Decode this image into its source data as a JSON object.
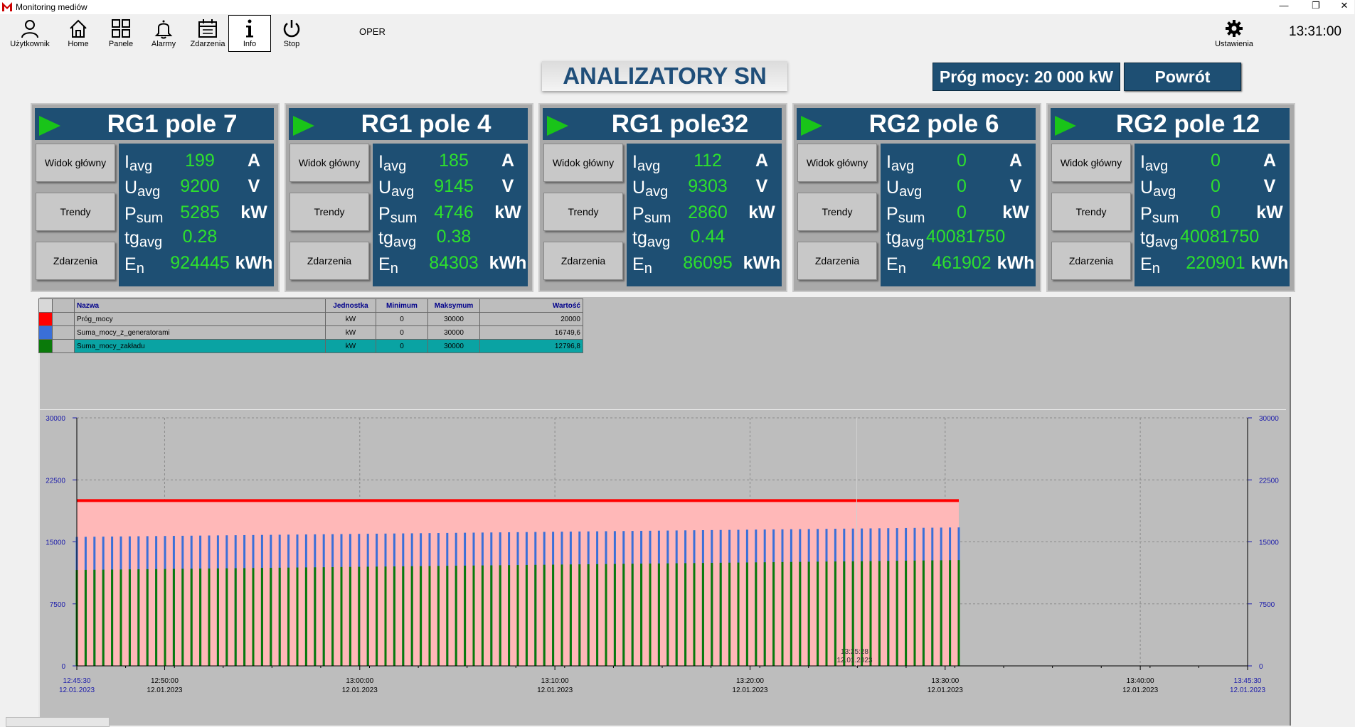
{
  "window": {
    "title": "Monitoring mediów",
    "minimize": "—",
    "restore": "❐",
    "close": "✕"
  },
  "toolbar": {
    "buttons": [
      {
        "label": "Użytkownik",
        "icon": "user-icon"
      },
      {
        "label": "Home",
        "icon": "home-icon"
      },
      {
        "label": "Panele",
        "icon": "panels-icon"
      },
      {
        "label": "Alarmy",
        "icon": "bell-icon"
      },
      {
        "label": "Zdarzenia",
        "icon": "calendar-icon"
      },
      {
        "label": "Info",
        "icon": "info-icon"
      },
      {
        "label": "Stop",
        "icon": "power-icon"
      }
    ],
    "mode": "OPER",
    "settings_label": "Ustawienia",
    "clock": "13:31:00"
  },
  "header": {
    "title": "ANALIZATORY SN",
    "threshold": "Próg mocy:  20 000 kW",
    "back": "Powrót"
  },
  "panels": [
    {
      "title": "RG1 pole 7",
      "I": "199",
      "U": "9200",
      "P": "5285",
      "tg": "0.28",
      "E": "924445"
    },
    {
      "title": "RG1 pole 4",
      "I": "185",
      "U": "9145",
      "P": "4746",
      "tg": "0.38",
      "E": "84303"
    },
    {
      "title": "RG1 pole32",
      "I": "112",
      "U": "9303",
      "P": "2860",
      "tg": "0.44",
      "E": "86095"
    },
    {
      "title": "RG2 pole 6",
      "I": "0",
      "U": "0",
      "P": "0",
      "tg": "40081750",
      "E": "461902"
    },
    {
      "title": "RG2 pole 12",
      "I": "0",
      "U": "0",
      "P": "0",
      "tg": "40081750",
      "E": "220901"
    }
  ],
  "panel_buttons": {
    "main": "Widok główny",
    "trends": "Trendy",
    "events": "Zdarzenia"
  },
  "units": {
    "I": "A",
    "U": "V",
    "P": "kW",
    "E": "kWh"
  },
  "labels": {
    "I": "I",
    "I_sub": "avg",
    "U": "U",
    "U_sub": "avg",
    "P": "P",
    "P_sub": "sum",
    "tg": "tg",
    "tg_sub": "avg",
    "E": "E",
    "E_sub": "n"
  },
  "legend": {
    "headers": [
      "Nazwa",
      "Jednostka",
      "Minimum",
      "Maksymum",
      "Wartość"
    ],
    "rows": [
      {
        "color": "#ff0000",
        "name": "Próg_mocy",
        "unit": "kW",
        "min": "0",
        "max": "30000",
        "value": "20000"
      },
      {
        "color": "#3a6fd8",
        "name": "Suma_mocy_z_generatorami",
        "unit": "kW",
        "min": "0",
        "max": "30000",
        "value": "16749,6"
      },
      {
        "color": "#0a7a0a",
        "name": "Suma_mocy_zakładu",
        "unit": "kW",
        "min": "0",
        "max": "30000",
        "value": "12796,8",
        "highlight": "#0aa3a3"
      }
    ]
  },
  "chart_data": {
    "type": "bar",
    "y_ticks": [
      "30000",
      "22500",
      "15000",
      "7500",
      "0"
    ],
    "ylim": [
      0,
      30000
    ],
    "x_ticks": [
      {
        "time": "12:45:30",
        "date": "12.01.2023",
        "minute": 0,
        "color": "#1a1aaa"
      },
      {
        "time": "12:50:00",
        "date": "12.01.2023",
        "minute": 4.5,
        "color": "#000"
      },
      {
        "time": "13:00:00",
        "date": "12.01.2023",
        "minute": 14.5,
        "color": "#000"
      },
      {
        "time": "13:10:00",
        "date": "12.01.2023",
        "minute": 24.5,
        "color": "#000"
      },
      {
        "time": "13:20:00",
        "date": "12.01.2023",
        "minute": 34.5,
        "color": "#000"
      },
      {
        "time": "13:30:00",
        "date": "12.01.2023",
        "minute": 44.5,
        "color": "#000"
      },
      {
        "time": "13:40:00",
        "date": "12.01.2023",
        "minute": 54.5,
        "color": "#000"
      },
      {
        "time": "13:45:30",
        "date": "12.01.2023",
        "minute": 60,
        "color": "#1a1aaa"
      }
    ],
    "cursor": {
      "time": "13:25:28",
      "date": "12.01.2023"
    },
    "x_range_minutes": [
      0,
      60
    ],
    "data_end_minute": 45.2,
    "series": [
      {
        "name": "Próg_mocy",
        "color": "#ff0000",
        "value": 20000
      },
      {
        "name": "Suma_mocy_z_generatorami",
        "color": "#3a6fd8",
        "start": 15600,
        "end": 16749.6
      },
      {
        "name": "Suma_mocy_zakładu",
        "color": "#0a7a0a",
        "start": 11600,
        "end": 12796.8
      }
    ],
    "bar_count": 101
  }
}
